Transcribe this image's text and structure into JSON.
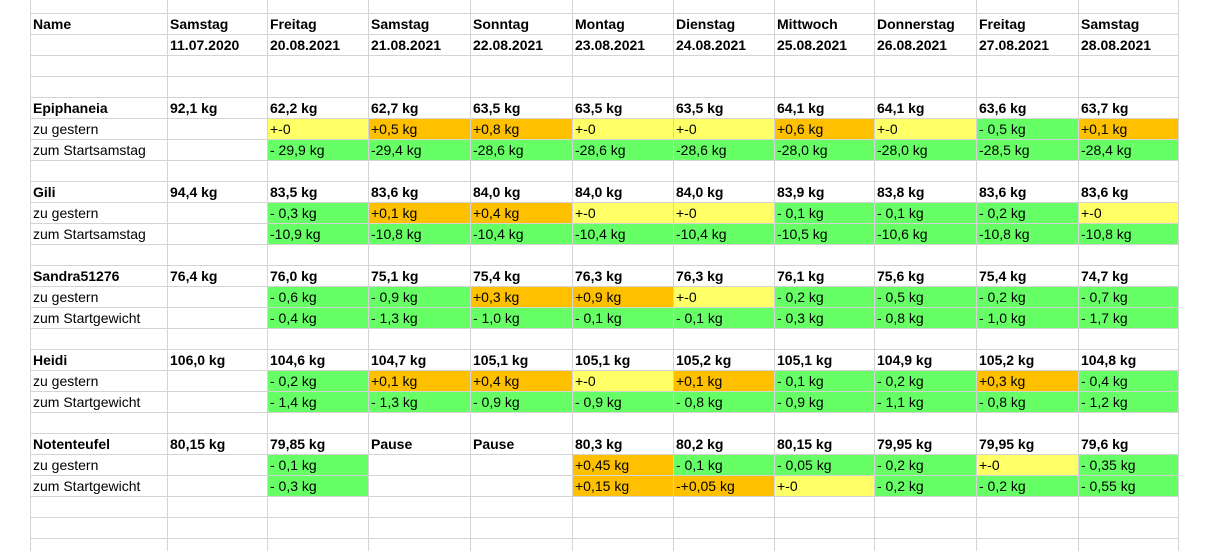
{
  "colors": {
    "yellow": "#ffff66",
    "orange": "#ffc000",
    "green": "#66ff66",
    "grid": "#d4d4d4"
  },
  "header": {
    "name_label": "Name",
    "days": [
      "Samstag",
      "Freitag",
      "Samstag",
      "Sonntag",
      "Montag",
      "Dienstag",
      "Mittwoch",
      "Donnerstag",
      "Freitag",
      "Samstag"
    ],
    "dates": [
      "11.07.2020",
      "20.08.2021",
      "21.08.2021",
      "22.08.2021",
      "23.08.2021",
      "24.08.2021",
      "25.08.2021",
      "26.08.2021",
      "27.08.2021",
      "28.08.2021"
    ]
  },
  "people": [
    {
      "name": "Epiphaneia",
      "weights": [
        "92,1 kg",
        "62,2 kg",
        "62,7 kg",
        "63,5 kg",
        "63,5 kg",
        "63,5 kg",
        "64,1 kg",
        "64,1 kg",
        "63,6 kg",
        "63,7 kg"
      ],
      "rows": [
        {
          "label": "zu gestern",
          "cells": [
            {
              "v": "+-0",
              "c": "yellow"
            },
            {
              "v": "+0,5 kg",
              "c": "orange"
            },
            {
              "v": "+0,8 kg",
              "c": "orange"
            },
            {
              "v": "+-0",
              "c": "yellow"
            },
            {
              "v": "+-0",
              "c": "yellow"
            },
            {
              "v": "+0,6 kg",
              "c": "orange"
            },
            {
              "v": "+-0",
              "c": "yellow"
            },
            {
              "v": "- 0,5 kg",
              "c": "green"
            },
            {
              "v": "+0,1 kg",
              "c": "orange"
            }
          ]
        },
        {
          "label": "zum Startsamstag",
          "cells": [
            {
              "v": "- 29,9 kg",
              "c": "green"
            },
            {
              "v": "-29,4 kg",
              "c": "green"
            },
            {
              "v": "-28,6 kg",
              "c": "green"
            },
            {
              "v": "-28,6 kg",
              "c": "green"
            },
            {
              "v": "-28,6 kg",
              "c": "green"
            },
            {
              "v": "-28,0 kg",
              "c": "green"
            },
            {
              "v": "-28,0 kg",
              "c": "green"
            },
            {
              "v": "-28,5 kg",
              "c": "green"
            },
            {
              "v": "-28,4 kg",
              "c": "green"
            }
          ]
        }
      ]
    },
    {
      "name": "Gili",
      "weights": [
        "94,4 kg",
        "83,5 kg",
        "83,6 kg",
        "84,0 kg",
        "84,0 kg",
        "84,0 kg",
        "83,9 kg",
        "83,8 kg",
        "83,6 kg",
        "83,6 kg"
      ],
      "rows": [
        {
          "label": "zu gestern",
          "cells": [
            {
              "v": "- 0,3 kg",
              "c": "green"
            },
            {
              "v": "+0,1 kg",
              "c": "orange"
            },
            {
              "v": "+0,4 kg",
              "c": "orange"
            },
            {
              "v": "+-0",
              "c": "yellow"
            },
            {
              "v": "+-0",
              "c": "yellow"
            },
            {
              "v": "- 0,1 kg",
              "c": "green"
            },
            {
              "v": "- 0,1 kg",
              "c": "green"
            },
            {
              "v": "- 0,2 kg",
              "c": "green"
            },
            {
              "v": "+-0",
              "c": "yellow"
            }
          ]
        },
        {
          "label": "zum Startsamstag",
          "cells": [
            {
              "v": "-10,9 kg",
              "c": "green"
            },
            {
              "v": "-10,8 kg",
              "c": "green"
            },
            {
              "v": "-10,4 kg",
              "c": "green"
            },
            {
              "v": "-10,4 kg",
              "c": "green"
            },
            {
              "v": "-10,4 kg",
              "c": "green"
            },
            {
              "v": "-10,5 kg",
              "c": "green"
            },
            {
              "v": "-10,6 kg",
              "c": "green"
            },
            {
              "v": "-10,8 kg",
              "c": "green"
            },
            {
              "v": "-10,8 kg",
              "c": "green"
            }
          ]
        }
      ]
    },
    {
      "name": "Sandra51276",
      "weights": [
        "76,4 kg",
        "76,0 kg",
        "75,1 kg",
        "75,4 kg",
        "76,3 kg",
        "76,3 kg",
        "76,1 kg",
        "75,6 kg",
        "75,4 kg",
        "74,7 kg"
      ],
      "rows": [
        {
          "label": "zu gestern",
          "cells": [
            {
              "v": "- 0,6 kg",
              "c": "green"
            },
            {
              "v": "- 0,9 kg",
              "c": "green"
            },
            {
              "v": "+0,3 kg",
              "c": "orange"
            },
            {
              "v": "+0,9 kg",
              "c": "orange"
            },
            {
              "v": "+-0",
              "c": "yellow"
            },
            {
              "v": "- 0,2 kg",
              "c": "green"
            },
            {
              "v": "- 0,5 kg",
              "c": "green"
            },
            {
              "v": "- 0,2 kg",
              "c": "green"
            },
            {
              "v": "- 0,7 kg",
              "c": "green"
            }
          ]
        },
        {
          "label": "zum Startgewicht",
          "cells": [
            {
              "v": "- 0,4 kg",
              "c": "green"
            },
            {
              "v": "- 1,3 kg",
              "c": "green"
            },
            {
              "v": "- 1,0 kg",
              "c": "green"
            },
            {
              "v": "- 0,1 kg",
              "c": "green"
            },
            {
              "v": "- 0,1 kg",
              "c": "green"
            },
            {
              "v": "- 0,3 kg",
              "c": "green"
            },
            {
              "v": "- 0,8 kg",
              "c": "green"
            },
            {
              "v": "- 1,0 kg",
              "c": "green"
            },
            {
              "v": "- 1,7 kg",
              "c": "green"
            }
          ]
        }
      ]
    },
    {
      "name": "Heidi",
      "weights": [
        "106,0 kg",
        "104,6 kg",
        "104,7 kg",
        "105,1 kg",
        "105,1 kg",
        "105,2 kg",
        "105,1 kg",
        "104,9 kg",
        "105,2 kg",
        "104,8 kg"
      ],
      "rows": [
        {
          "label": "zu gestern",
          "cells": [
            {
              "v": "- 0,2 kg",
              "c": "green"
            },
            {
              "v": "+0,1 kg",
              "c": "orange"
            },
            {
              "v": "+0,4 kg",
              "c": "orange"
            },
            {
              "v": "+-0",
              "c": "yellow"
            },
            {
              "v": "+0,1 kg",
              "c": "orange"
            },
            {
              "v": "- 0,1 kg",
              "c": "green"
            },
            {
              "v": "- 0,2 kg",
              "c": "green"
            },
            {
              "v": "+0,3 kg",
              "c": "orange"
            },
            {
              "v": "- 0,4 kg",
              "c": "green"
            }
          ]
        },
        {
          "label": "zum Startgewicht",
          "cells": [
            {
              "v": "- 1,4 kg",
              "c": "green"
            },
            {
              "v": "- 1,3 kg",
              "c": "green"
            },
            {
              "v": "- 0,9 kg",
              "c": "green"
            },
            {
              "v": "- 0,9 kg",
              "c": "green"
            },
            {
              "v": "- 0,8 kg",
              "c": "green"
            },
            {
              "v": "- 0,9 kg",
              "c": "green"
            },
            {
              "v": "- 1,1 kg",
              "c": "green"
            },
            {
              "v": "- 0,8 kg",
              "c": "green"
            },
            {
              "v": "- 1,2 kg",
              "c": "green"
            }
          ]
        }
      ]
    },
    {
      "name": "Notenteufel",
      "weights": [
        "80,15 kg",
        "79,85 kg",
        "Pause",
        "Pause",
        "80,3 kg",
        "80,2 kg",
        "80,15 kg",
        "79,95 kg",
        "79,95 kg",
        "79,6 kg"
      ],
      "rows": [
        {
          "label": "zu gestern",
          "cells": [
            {
              "v": "- 0,1 kg",
              "c": "green"
            },
            {
              "v": "",
              "c": ""
            },
            {
              "v": "",
              "c": ""
            },
            {
              "v": "+0,45 kg",
              "c": "orange"
            },
            {
              "v": "- 0,1 kg",
              "c": "green"
            },
            {
              "v": "- 0,05 kg",
              "c": "green"
            },
            {
              "v": "- 0,2 kg",
              "c": "green"
            },
            {
              "v": "+-0",
              "c": "yellow"
            },
            {
              "v": "- 0,35 kg",
              "c": "green"
            }
          ]
        },
        {
          "label": "zum Startgewicht",
          "cells": [
            {
              "v": "- 0,3 kg",
              "c": "green"
            },
            {
              "v": "",
              "c": ""
            },
            {
              "v": "",
              "c": ""
            },
            {
              "v": "+0,15 kg",
              "c": "orange"
            },
            {
              "v": "-+0,05 kg",
              "c": "orange"
            },
            {
              "v": "+-0",
              "c": "yellow"
            },
            {
              "v": "- 0,2 kg",
              "c": "green"
            },
            {
              "v": "- 0,2 kg",
              "c": "green"
            },
            {
              "v": "- 0,55 kg",
              "c": "green"
            }
          ]
        }
      ]
    }
  ]
}
